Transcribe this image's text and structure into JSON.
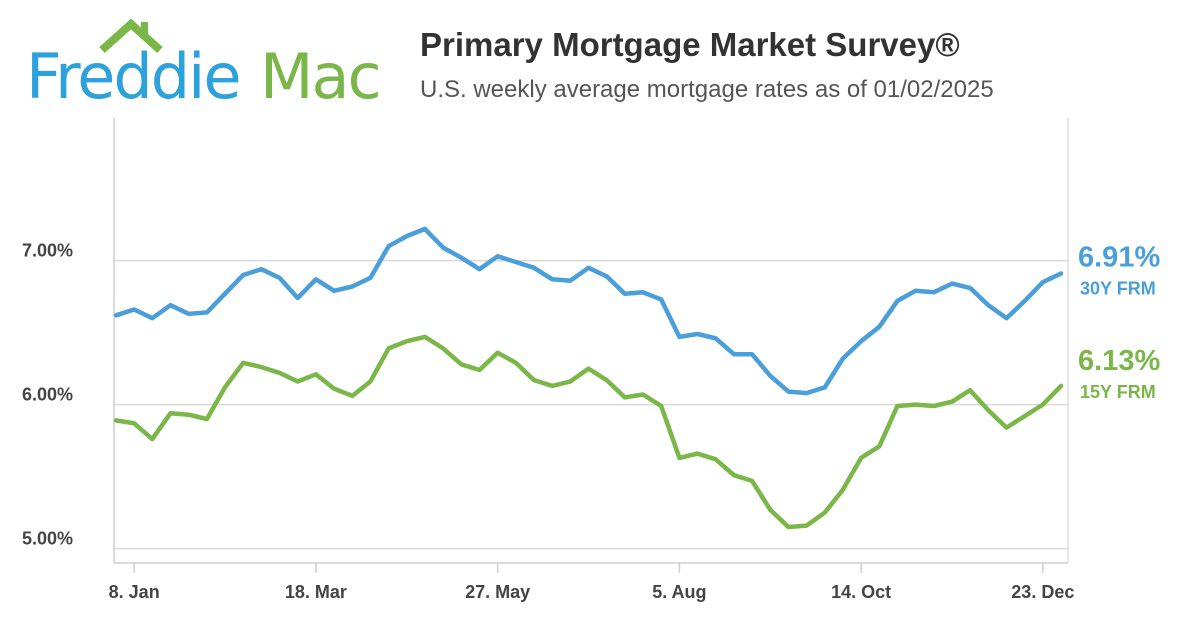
{
  "logo": {
    "text_left": "Freddie",
    "text_right": "Mac",
    "colors": {
      "blue": "#2ca1dc",
      "green": "#7ab648"
    }
  },
  "colors": {
    "blue": "#4a9fdb",
    "green": "#7ab648",
    "grid": "#d9d9d9",
    "axis": "#cfcfcf",
    "label": "#444444"
  },
  "chart_data": {
    "type": "line",
    "title": "Primary Mortgage Market Survey®",
    "subtitle": "U.S. weekly average mortgage rates as of 01/02/2025",
    "xlabel": "",
    "ylabel": "",
    "y_ticks": [
      5.0,
      6.0,
      7.0
    ],
    "y_tick_labels": [
      "5.00%",
      "6.00%",
      "7.00%"
    ],
    "ylim": [
      4.9,
      7.99
    ],
    "x_tick_labels": [
      "8. Jan",
      "18. Mar",
      "27. May",
      "5. Aug",
      "14. Oct",
      "23. Dec"
    ],
    "x_tick_indices": [
      1,
      11,
      21,
      31,
      41,
      51
    ],
    "grid": "horizontal",
    "legend": "end-of-line labels (right)",
    "dates": [
      "2024-01-04",
      "2024-01-11",
      "2024-01-18",
      "2024-01-25",
      "2024-02-01",
      "2024-02-08",
      "2024-02-15",
      "2024-02-22",
      "2024-02-29",
      "2024-03-07",
      "2024-03-14",
      "2024-03-21",
      "2024-03-28",
      "2024-04-04",
      "2024-04-11",
      "2024-04-18",
      "2024-04-25",
      "2024-05-02",
      "2024-05-09",
      "2024-05-16",
      "2024-05-23",
      "2024-05-30",
      "2024-06-06",
      "2024-06-13",
      "2024-06-20",
      "2024-06-27",
      "2024-07-03",
      "2024-07-11",
      "2024-07-18",
      "2024-07-25",
      "2024-08-01",
      "2024-08-08",
      "2024-08-15",
      "2024-08-22",
      "2024-08-29",
      "2024-09-05",
      "2024-09-12",
      "2024-09-19",
      "2024-09-26",
      "2024-10-03",
      "2024-10-10",
      "2024-10-17",
      "2024-10-24",
      "2024-10-31",
      "2024-11-07",
      "2024-11-14",
      "2024-11-21",
      "2024-11-27",
      "2024-12-05",
      "2024-12-12",
      "2024-12-19",
      "2024-12-26",
      "2025-01-02"
    ],
    "series": [
      {
        "name": "30Y FRM",
        "end_label": "6.91%",
        "color": "#4a9fdb",
        "values": [
          6.62,
          6.66,
          6.6,
          6.69,
          6.63,
          6.64,
          6.77,
          6.9,
          6.94,
          6.88,
          6.74,
          6.87,
          6.79,
          6.82,
          6.88,
          7.1,
          7.17,
          7.22,
          7.09,
          7.02,
          6.94,
          7.03,
          6.99,
          6.95,
          6.87,
          6.86,
          6.95,
          6.89,
          6.77,
          6.78,
          6.73,
          6.47,
          6.49,
          6.46,
          6.35,
          6.35,
          6.2,
          6.09,
          6.08,
          6.12,
          6.32,
          6.44,
          6.54,
          6.72,
          6.79,
          6.78,
          6.84,
          6.81,
          6.69,
          6.6,
          6.72,
          6.85,
          6.91
        ]
      },
      {
        "name": "15Y FRM",
        "end_label": "6.13%",
        "color": "#7ab648",
        "values": [
          5.89,
          5.87,
          5.76,
          5.94,
          5.93,
          5.9,
          6.12,
          6.29,
          6.26,
          6.22,
          6.16,
          6.21,
          6.11,
          6.06,
          6.16,
          6.39,
          6.44,
          6.47,
          6.39,
          6.28,
          6.24,
          6.36,
          6.29,
          6.17,
          6.13,
          6.16,
          6.25,
          6.17,
          6.05,
          6.07,
          5.99,
          5.63,
          5.66,
          5.62,
          5.51,
          5.47,
          5.27,
          5.15,
          5.16,
          5.25,
          5.41,
          5.63,
          5.71,
          5.99,
          6.0,
          5.99,
          6.02,
          6.1,
          5.96,
          5.84,
          5.92,
          6.0,
          6.13
        ]
      }
    ]
  }
}
